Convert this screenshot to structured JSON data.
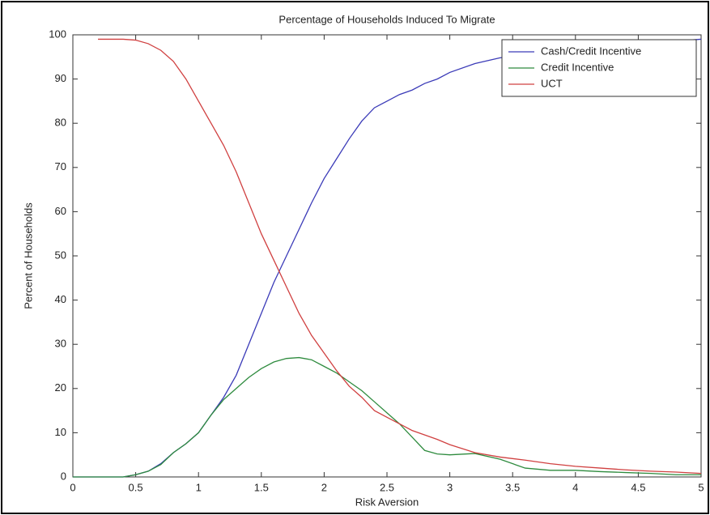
{
  "chart_data": {
    "type": "line",
    "title": "Percentage of Households Induced To Migrate",
    "x_label": "Risk Aversion",
    "y_label": "Percent of Households",
    "x": [
      0,
      0.2,
      0.4,
      0.5,
      0.6,
      0.7,
      0.8,
      0.9,
      1.0,
      1.1,
      1.2,
      1.3,
      1.4,
      1.5,
      1.6,
      1.7,
      1.8,
      1.9,
      2.0,
      2.1,
      2.2,
      2.3,
      2.4,
      2.5,
      2.6,
      2.7,
      2.8,
      2.9,
      3.0,
      3.2,
      3.4,
      3.6,
      3.8,
      4.0,
      4.2,
      4.4,
      4.6,
      4.8,
      5.0
    ],
    "series": [
      {
        "name": "Cash/Credit Incentive",
        "color": "#3b3bb8",
        "values": [
          0,
          0,
          0,
          0.5,
          1.3,
          3,
          5.5,
          7.5,
          10,
          14,
          18,
          23,
          30,
          37,
          44,
          50,
          56,
          62,
          67.5,
          72,
          76.5,
          80.5,
          83.5,
          85,
          86.5,
          87.5,
          89,
          90,
          91.5,
          93.5,
          94.8,
          95.5,
          96.2,
          97,
          97.5,
          98,
          98.3,
          98.6,
          99
        ]
      },
      {
        "name": "Credit Incentive",
        "color": "#2e8b3e",
        "values": [
          0,
          0,
          0,
          0.5,
          1.3,
          2.8,
          5.5,
          7.5,
          10,
          14,
          17.5,
          20,
          22.5,
          24.5,
          26,
          26.8,
          27,
          26.5,
          25,
          23.5,
          21.5,
          19.5,
          17,
          14.5,
          12,
          9,
          6,
          5.2,
          5,
          5.3,
          4,
          2,
          1.5,
          1.5,
          1.2,
          1,
          0.8,
          0.5,
          0.5
        ]
      },
      {
        "name": "UCT",
        "color": "#d04040",
        "values": [
          null,
          99,
          99,
          98.8,
          98,
          96.5,
          94,
          90,
          85,
          80,
          75,
          69,
          62,
          55,
          49,
          43,
          37,
          32,
          28,
          24,
          20.5,
          18,
          15,
          13.5,
          12,
          10.5,
          9.5,
          8.5,
          7.3,
          5.5,
          4.5,
          3.8,
          3,
          2.4,
          2,
          1.6,
          1.3,
          1.1,
          0.8
        ]
      }
    ],
    "xlim": [
      0,
      5
    ],
    "xticks": [
      0,
      0.5,
      1,
      1.5,
      2,
      2.5,
      3,
      3.5,
      4,
      4.5,
      5
    ],
    "ylim": [
      0,
      100
    ],
    "yticks": [
      0,
      10,
      20,
      30,
      40,
      50,
      60,
      70,
      80,
      90,
      100
    ],
    "grid": false,
    "legend": "upper-right"
  }
}
